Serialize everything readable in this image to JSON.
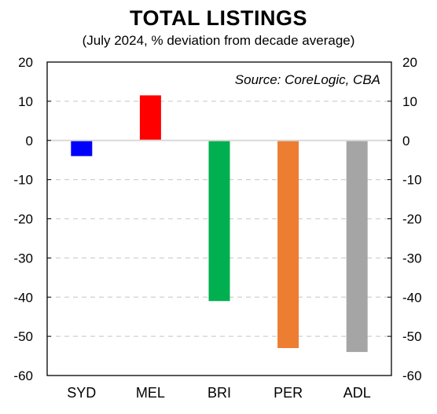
{
  "chart_data": {
    "type": "bar",
    "title": "TOTAL LISTINGS",
    "subtitle": "(July 2024, % deviation from decade average)",
    "source": "Source: CoreLogic, CBA",
    "categories": [
      "SYD",
      "MEL",
      "BRI",
      "PER",
      "ADL"
    ],
    "values": [
      -4,
      11.5,
      -41,
      -53,
      -54
    ],
    "colors": [
      "#0000ff",
      "#ff0000",
      "#00b050",
      "#ed7d31",
      "#a5a5a5"
    ],
    "ylim": [
      -60,
      20
    ],
    "yticks": [
      20,
      10,
      0,
      -10,
      -20,
      -30,
      -40,
      -50,
      -60
    ],
    "grid": true,
    "grid_style": "dashed",
    "secondary_y_axis": true
  }
}
